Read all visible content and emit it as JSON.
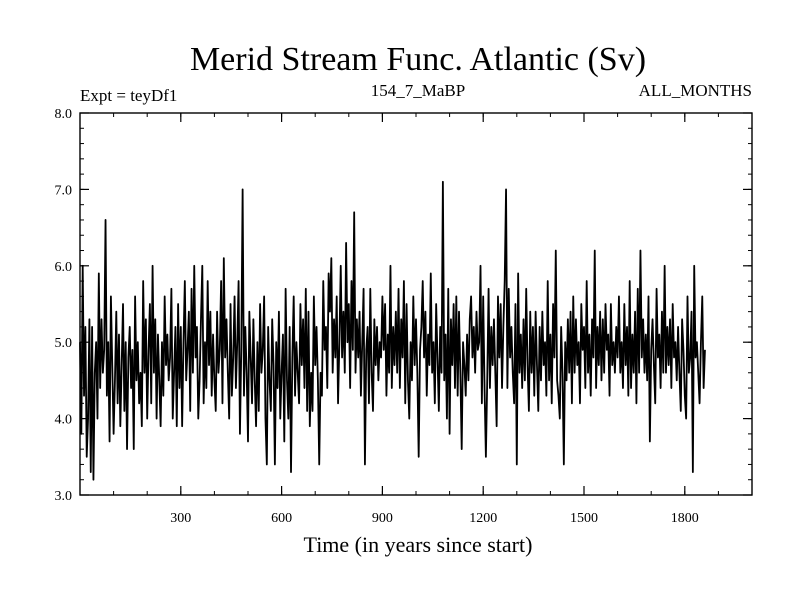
{
  "chart_data": {
    "type": "line",
    "title": "Merid Stream Func. Atlantic (Sv)",
    "experiment": "Expt = teyDf1",
    "subtitle": "154_7_MaBP",
    "season": "ALL_MONTHS",
    "xlabel": "Time (in years since start)",
    "ylabel": "",
    "xlim": [
      0,
      2000
    ],
    "ylim": [
      3.0,
      8.0
    ],
    "xticks": [
      300,
      600,
      900,
      1200,
      1500,
      1800
    ],
    "xtick_labels": [
      "300",
      "600",
      "900",
      "1200",
      "1500",
      "1800"
    ],
    "yticks": [
      3.0,
      4.0,
      5.0,
      6.0,
      7.0,
      8.0
    ],
    "ytick_labels": [
      "3.0",
      "4.0",
      "5.0",
      "6.0",
      "7.0",
      "8.0"
    ],
    "grid": false,
    "colors": {
      "line": "#000000",
      "axes": "#000000",
      "background": "#ffffff"
    },
    "series": [
      {
        "name": "Merid Stream Func. Atlantic",
        "x_start": 0,
        "x_step": 4,
        "values": [
          5.0,
          3.8,
          6.0,
          4.3,
          5.2,
          3.5,
          4.0,
          5.3,
          3.3,
          5.2,
          3.2,
          4.6,
          5.0,
          4.0,
          5.9,
          4.4,
          5.3,
          4.6,
          4.9,
          6.6,
          4.3,
          5.0,
          3.7,
          5.6,
          4.7,
          3.8,
          4.5,
          5.4,
          4.2,
          5.1,
          3.9,
          4.7,
          5.5,
          4.1,
          5.0,
          3.6,
          4.8,
          5.2,
          4.4,
          4.9,
          3.6,
          5.6,
          4.5,
          5.0,
          4.2,
          4.6,
          3.9,
          5.8,
          4.6,
          5.3,
          4.0,
          4.9,
          5.5,
          4.2,
          6.0,
          4.6,
          5.3,
          4.0,
          5.1,
          4.5,
          3.9,
          5.0,
          4.3,
          5.6,
          4.7,
          5.1,
          4.5,
          4.8,
          5.7,
          4.0,
          4.6,
          5.2,
          3.9,
          5.5,
          4.4,
          5.2,
          3.9,
          5.0,
          5.8,
          4.5,
          4.9,
          5.4,
          4.1,
          5.7,
          4.6,
          6.0,
          4.8,
          5.2,
          4.0,
          4.5,
          5.3,
          6.0,
          4.2,
          5.0,
          4.4,
          5.8,
          4.7,
          5.4,
          4.3,
          5.1,
          4.5,
          4.1,
          5.4,
          4.6,
          4.9,
          5.8,
          4.2,
          6.1,
          4.8,
          5.3,
          4.6,
          4.0,
          5.5,
          4.3,
          4.8,
          5.6,
          4.4,
          5.0,
          5.8,
          3.8,
          4.9,
          7.0,
          4.3,
          5.2,
          4.6,
          3.7,
          5.4,
          4.8,
          4.2,
          5.3,
          4.5,
          3.9,
          5.0,
          4.1,
          5.5,
          4.6,
          4.9,
          5.6,
          4.0,
          3.4,
          5.2,
          4.5,
          4.1,
          5.3,
          4.7,
          3.4,
          5.0,
          4.4,
          5.4,
          4.0,
          4.6,
          5.1,
          3.7,
          5.7,
          4.5,
          4.0,
          5.2,
          3.3,
          4.8,
          5.6,
          4.3,
          5.0,
          4.6,
          4.2,
          5.5,
          4.7,
          5.3,
          4.4,
          5.7,
          4.1,
          5.4,
          3.9,
          4.6,
          4.1,
          5.6,
          4.7,
          5.2,
          4.5,
          3.4,
          4.6,
          4.3,
          5.8,
          4.9,
          5.2,
          4.4,
          5.9,
          5.4,
          6.1,
          4.6,
          5.3,
          4.8,
          5.6,
          4.2,
          5.0,
          6.0,
          4.8,
          5.4,
          4.6,
          6.3,
          5.0,
          5.5,
          4.4,
          5.8,
          4.9,
          6.7,
          4.6,
          5.3,
          4.8,
          5.4,
          4.3,
          5.0,
          5.7,
          3.4,
          4.9,
          5.2,
          4.2,
          5.7,
          4.6,
          4.1,
          5.3,
          4.7,
          5.2,
          4.5,
          5.0,
          4.8,
          5.6,
          4.9,
          5.5,
          4.3,
          5.1,
          4.6,
          6.0,
          4.4,
          5.2,
          4.7,
          5.4,
          4.6,
          5.7,
          4.4,
          5.3,
          4.8,
          5.8,
          4.2,
          5.5,
          4.5,
          4.0,
          5.0,
          4.5,
          5.6,
          4.7,
          5.3,
          4.6,
          3.5,
          4.9,
          5.2,
          5.8,
          4.8,
          5.4,
          4.3,
          5.1,
          4.7,
          5.9,
          4.6,
          5.0,
          4.2,
          5.5,
          4.8,
          4.1,
          5.2,
          4.6,
          7.1,
          4.5,
          5.1,
          4.0,
          5.7,
          3.8,
          5.3,
          4.7,
          5.5,
          4.4,
          5.6,
          4.3,
          5.4,
          4.6,
          3.6,
          5.0,
          4.7,
          4.3,
          5.1,
          4.5,
          5.3,
          5.6,
          4.8,
          5.2,
          4.6,
          5.4,
          4.9,
          5.0,
          6.0,
          4.2,
          5.6,
          4.4,
          3.5,
          4.5,
          5.7,
          4.4,
          5.2,
          4.7,
          5.3,
          4.6,
          3.9,
          5.6,
          4.8,
          5.5,
          4.4,
          5.2,
          5.8,
          7.0,
          4.4,
          5.7,
          4.8,
          5.2,
          4.6,
          4.2,
          5.5,
          3.4,
          5.9,
          4.6,
          5.1,
          4.4,
          5.3,
          4.5,
          5.7,
          4.7,
          4.1,
          5.4,
          4.6,
          5.2,
          4.3,
          5.4,
          4.7,
          4.1,
          5.2,
          4.5,
          5.4,
          4.7,
          5.0,
          4.3,
          5.8,
          4.5,
          5.1,
          4.2,
          5.5,
          4.8,
          6.2,
          4.5,
          4.3,
          4.0,
          5.2,
          4.6,
          3.4,
          5.0,
          4.5,
          5.3,
          4.6,
          5.4,
          4.2,
          5.6,
          4.6,
          5.3,
          4.7,
          5.0,
          4.2,
          5.5,
          4.9,
          5.2,
          4.4,
          5.8,
          4.6,
          5.1,
          4.3,
          5.3,
          4.8,
          6.2,
          4.4,
          5.2,
          4.7,
          5.4,
          4.5,
          5.3,
          4.6,
          5.5,
          4.9,
          5.1,
          4.3,
          5.5,
          4.7,
          5.0,
          4.6,
          5.2,
          4.8,
          5.6,
          4.6,
          5.0,
          4.4,
          5.5,
          4.7,
          5.2,
          4.3,
          5.8,
          4.4,
          5.1,
          4.6,
          5.4,
          4.2,
          5.7,
          4.6,
          6.2,
          4.8,
          5.3,
          4.6,
          5.1,
          4.5,
          5.6,
          3.7,
          4.9,
          5.3,
          4.7,
          4.2,
          5.7,
          4.8,
          5.1,
          4.4,
          5.4,
          4.6,
          6.0,
          4.6,
          5.2,
          4.7,
          5.3,
          4.4,
          5.5,
          4.8,
          5.0,
          4.5,
          5.2,
          4.6,
          4.1,
          5.3,
          4.9,
          4.3,
          4.0,
          5.6,
          4.6,
          4.8,
          5.4,
          3.3,
          6.0,
          4.8,
          5.0,
          4.6,
          4.2,
          5.0,
          5.6,
          4.4,
          4.9
        ]
      }
    ]
  }
}
